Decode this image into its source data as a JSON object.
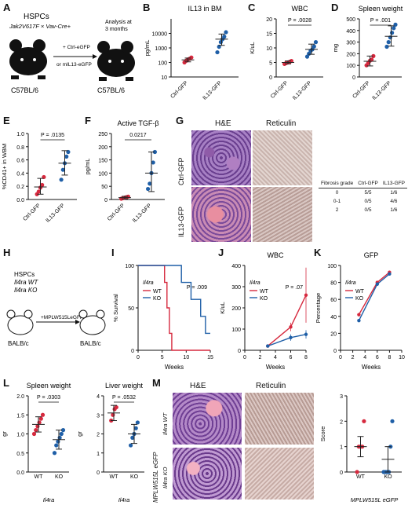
{
  "panel_labels": [
    "A",
    "B",
    "C",
    "D",
    "E",
    "F",
    "G",
    "H",
    "I",
    "J",
    "K",
    "L",
    "M"
  ],
  "colors": {
    "ctrl": "#d6293e",
    "il13": "#1f5fa7",
    "wt": "#d6293e",
    "ko": "#1f5fa7"
  },
  "panelA": {
    "title": "HSPCs",
    "genotype": "Jak2V617F × Vav-Cre+",
    "arrow_top": "+ Ctrl-eGFP",
    "arrow_bottom": "or mIL13-eGFP",
    "analysis": "Analysis at\n3 months",
    "mouse_left": "C57BL/6",
    "mouse_right": "C57BL/6"
  },
  "panelH": {
    "line1": "HSPCs",
    "line2": "Il4ra WT",
    "line3": "Il4ra KO",
    "arrow": "+MPLW515LeGFP",
    "mouse_left": "BALB/c",
    "mouse_right": "BALB/c"
  },
  "panelG": {
    "col_he": "H&E",
    "col_ret": "Reticulin",
    "row1": "Ctrl-GFP",
    "row2": "IL13-GFP",
    "table_headers": [
      "Fibrosis grade",
      "Ctrl-GFP",
      "IL13-GFP"
    ],
    "table_rows": [
      [
        "0",
        "5/5",
        "1/6"
      ],
      [
        "0-1",
        "0/5",
        "4/6"
      ],
      [
        "2",
        "0/5",
        "1/6"
      ]
    ]
  },
  "panelM": {
    "col_he": "H&E",
    "col_ret": "Reticulin",
    "row1": "Il4ra WT",
    "row2": "Il4ra KO",
    "side_label": "MPLW515L eGFP"
  },
  "chart_data": [
    {
      "panel": "B",
      "type": "scatter",
      "title": "IL13 in BM",
      "ylabel": "pg/mL",
      "ylog": true,
      "ylim": [
        10,
        100000
      ],
      "ytick_labels": [
        "10",
        "100",
        "1000",
        "10000"
      ],
      "categories": [
        "Ctrl-GFP",
        "IL13-GFP"
      ],
      "series": [
        {
          "values": [
            100,
            130,
            160,
            180,
            220
          ]
        },
        {
          "values": [
            500,
            1200,
            2500,
            4000,
            6000,
            12000
          ]
        }
      ],
      "mean": [
        150,
        4000
      ],
      "sd": [
        [
          110,
          200
        ],
        [
          1500,
          9000
        ]
      ]
    },
    {
      "panel": "C",
      "type": "scatter",
      "title": "WBC",
      "ylabel": "K/uL",
      "ylim": [
        0,
        20
      ],
      "ytick_labels": [
        "0",
        "5",
        "10",
        "15",
        "20"
      ],
      "categories": [
        "Ctrl-GFP",
        "IL13-GFP"
      ],
      "series": [
        {
          "values": [
            4.5,
            4.8,
            5.0,
            5.2,
            5.5
          ]
        },
        {
          "values": [
            7,
            8,
            9,
            9.5,
            10.5,
            12
          ]
        }
      ],
      "mean": [
        5.0,
        9.5
      ],
      "sd": [
        [
          4.5,
          5.5
        ],
        [
          7.8,
          11.3
        ]
      ],
      "annotation": "P = .0028"
    },
    {
      "panel": "D",
      "type": "scatter",
      "title": "Spleen weight",
      "ylabel": "mg",
      "ylim": [
        0,
        500
      ],
      "ytick_labels": [
        "0",
        "100",
        "200",
        "300",
        "400",
        "500"
      ],
      "categories": [
        "Ctrl-GFP",
        "IL13-GFP"
      ],
      "series": [
        {
          "values": [
            100,
            120,
            140,
            150,
            180
          ]
        },
        {
          "values": [
            260,
            300,
            340,
            380,
            420,
            450
          ]
        }
      ],
      "mean": [
        135,
        350
      ],
      "sd": [
        [
          95,
          180
        ],
        [
          265,
          440
        ]
      ],
      "annotation": "P = .001"
    },
    {
      "panel": "E",
      "type": "scatter",
      "title": "",
      "ylabel": "%CD41+ in WBM",
      "ylim": [
        0,
        1.0
      ],
      "ytick_labels": [
        "0.0",
        "0.2",
        "0.4",
        "0.6",
        "0.8",
        "1.0"
      ],
      "categories": [
        "Ctrl-GFP",
        "IL13-GFP"
      ],
      "series": [
        {
          "values": [
            0.08,
            0.12,
            0.18,
            0.22,
            0.34
          ]
        },
        {
          "values": [
            0.3,
            0.45,
            0.55,
            0.65,
            0.72
          ]
        }
      ],
      "mean": [
        0.19,
        0.55
      ],
      "sd": [
        [
          0.08,
          0.32
        ],
        [
          0.37,
          0.74
        ]
      ],
      "annotation": "P = .0135"
    },
    {
      "panel": "F",
      "type": "scatter",
      "title": "Active TGF-β",
      "ylabel": "pg/mL",
      "ylim": [
        0,
        250
      ],
      "ytick_labels": [
        "0",
        "50",
        "100",
        "150",
        "200",
        "250"
      ],
      "categories": [
        "Ctrl-GFP",
        "IL13-GFP"
      ],
      "series": [
        {
          "values": [
            3,
            5,
            7,
            9,
            11
          ]
        },
        {
          "values": [
            40,
            60,
            100,
            140,
            180
          ]
        }
      ],
      "mean": [
        7,
        100
      ],
      "sd": [
        [
          2,
          12
        ],
        [
          30,
          180
        ]
      ],
      "annotation": "0.0217"
    },
    {
      "panel": "I",
      "type": "line",
      "title": "",
      "ylabel": "% Survival",
      "xlabel": "Weeks",
      "ylim": [
        0,
        100
      ],
      "xlim": [
        0,
        15
      ],
      "ytick_labels": [
        "0",
        "50",
        "100"
      ],
      "xtick_labels": [
        "0",
        "5",
        "10",
        "15"
      ],
      "legend_title": "Il4ra",
      "legend": [
        "WT",
        "KO"
      ],
      "series": [
        {
          "name": "WT",
          "x": [
            0,
            5.5,
            5.5,
            6,
            6,
            6.5,
            6.5,
            7,
            7,
            15
          ],
          "y": [
            100,
            100,
            80,
            80,
            50,
            50,
            20,
            20,
            0,
            0
          ]
        },
        {
          "name": "KO",
          "x": [
            0,
            9,
            9,
            11,
            11,
            13,
            13,
            14,
            14,
            15
          ],
          "y": [
            100,
            100,
            80,
            80,
            60,
            60,
            40,
            40,
            20,
            20
          ]
        }
      ],
      "annotation": "P = .009"
    },
    {
      "panel": "J",
      "type": "line",
      "title": "WBC",
      "ylabel": "K/uL",
      "xlabel": "Weeks",
      "ylim": [
        0,
        400
      ],
      "xlim": [
        0,
        8
      ],
      "ytick_labels": [
        "0",
        "100",
        "200",
        "300",
        "400"
      ],
      "xtick_labels": [
        "0",
        "2",
        "4",
        "6",
        "8"
      ],
      "legend_title": "Il4ra",
      "legend": [
        "WT",
        "KO"
      ],
      "series": [
        {
          "name": "WT",
          "x": [
            3,
            6,
            8
          ],
          "y": [
            20,
            110,
            260
          ],
          "err": [
            5,
            20,
            130
          ]
        },
        {
          "name": "KO",
          "x": [
            3,
            6,
            8
          ],
          "y": [
            20,
            60,
            75
          ],
          "err": [
            5,
            15,
            20
          ]
        }
      ],
      "annotation": "P = .07"
    },
    {
      "panel": "K",
      "type": "line",
      "title": "GFP",
      "ylabel": "Percentage",
      "xlabel": "Weeks",
      "ylim": [
        0,
        100
      ],
      "xlim": [
        0,
        10
      ],
      "ytick_labels": [
        "0",
        "20",
        "40",
        "60",
        "80",
        "100"
      ],
      "xtick_labels": [
        "0",
        "2",
        "4",
        "6",
        "8",
        "10"
      ],
      "legend_title": "Il4ra",
      "legend": [
        "WT",
        "KO"
      ],
      "series": [
        {
          "name": "WT",
          "x": [
            3,
            6,
            8
          ],
          "y": [
            42,
            80,
            92
          ]
        },
        {
          "name": "KO",
          "x": [
            3,
            6,
            8
          ],
          "y": [
            35,
            78,
            90
          ]
        }
      ]
    },
    {
      "panel": "L1",
      "type": "scatter",
      "title": "Spleen weight",
      "ylabel": "gr",
      "xlabel": "Il4ra",
      "ylim": [
        0,
        2.0
      ],
      "ytick_labels": [
        "0.0",
        "0.5",
        "1.0",
        "1.5",
        "2.0"
      ],
      "categories": [
        "WT",
        "KO"
      ],
      "series": [
        {
          "values": [
            1.0,
            1.1,
            1.2,
            1.3,
            1.4,
            1.5
          ]
        },
        {
          "values": [
            0.5,
            0.7,
            0.8,
            0.9,
            1.0,
            1.1
          ]
        }
      ],
      "mean": [
        1.25,
        0.85
      ],
      "sd": [
        [
          1.05,
          1.45
        ],
        [
          0.6,
          1.1
        ]
      ],
      "annotation": "P = .0303"
    },
    {
      "panel": "L2",
      "type": "scatter",
      "title": "Liver weight",
      "ylabel": "gr",
      "xlabel": "Il4ra",
      "ylim": [
        0,
        4
      ],
      "ytick_labels": [
        "0",
        "1",
        "2",
        "3",
        "4"
      ],
      "categories": [
        "WT",
        "KO"
      ],
      "series": [
        {
          "values": [
            2.7,
            3.0,
            3.3,
            3.4
          ]
        },
        {
          "values": [
            1.4,
            1.8,
            2.0,
            2.3,
            2.6
          ]
        }
      ],
      "mean": [
        3.1,
        2.0
      ],
      "sd": [
        [
          2.7,
          3.5
        ],
        [
          1.5,
          2.5
        ]
      ],
      "annotation": "P = .0532"
    },
    {
      "panel": "M",
      "type": "scatter",
      "title": "",
      "ylabel": "Score",
      "xlabel": "MPLW515L eGFP",
      "ylim": [
        0,
        3
      ],
      "ytick_labels": [
        "0",
        "1",
        "2",
        "3"
      ],
      "categories": [
        "WT",
        "KO"
      ],
      "series": [
        {
          "values": [
            0,
            1,
            1,
            1,
            2
          ]
        },
        {
          "values": [
            0,
            0,
            0,
            0,
            1,
            2
          ]
        }
      ],
      "mean": [
        1.0,
        0.5
      ],
      "sd": [
        [
          0.6,
          1.4
        ],
        [
          0,
          1.0
        ]
      ]
    }
  ]
}
